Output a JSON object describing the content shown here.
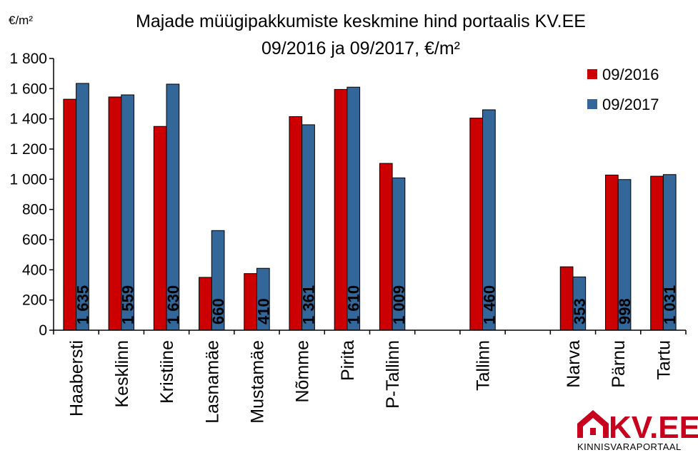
{
  "chart_data": {
    "type": "bar",
    "title_line1": "Majade müügipakkumiste keskmine hind portaalis KV.EE",
    "title_line2": "09/2016 ja 09/2017, €/m²",
    "unit_label": "€/m²",
    "categories": [
      "Haabersti",
      "Kesklinn",
      "Kristiine",
      "Lasnamäe",
      "Mustamäe",
      "Nõmme",
      "Pirita",
      "P-Tallinn",
      "",
      "Tallinn",
      "",
      "Narva",
      "Pärnu",
      "Tartu"
    ],
    "series": [
      {
        "name": "09/2016",
        "color": "#cc0000",
        "values": [
          1530,
          1545,
          1350,
          350,
          375,
          1415,
          1595,
          1105,
          null,
          1405,
          null,
          420,
          1028,
          1020
        ]
      },
      {
        "name": "09/2017",
        "color": "#336699",
        "values": [
          1635,
          1559,
          1630,
          660,
          410,
          1361,
          1610,
          1009,
          null,
          1460,
          null,
          353,
          998,
          1031
        ],
        "data_labels": [
          "1 635",
          "1 559",
          "1 630",
          "660",
          "410",
          "1 361",
          "1 610",
          "1 009",
          "",
          "1 460",
          "",
          "353",
          "998",
          "1 031"
        ]
      }
    ],
    "ylim": [
      0,
      1800
    ],
    "yticks": [
      0,
      200,
      400,
      600,
      800,
      1000,
      1200,
      1400,
      1600,
      1800
    ],
    "ytick_labels": [
      "0",
      "200",
      "400",
      "600",
      "800",
      "1 000",
      "1 200",
      "1 400",
      "1 600",
      "1 800"
    ],
    "legend_position": "top-right",
    "grid": false
  },
  "logo": {
    "text": "KV.EE",
    "subtitle": "KINNISVARAPORTAAL",
    "color": "#c8001e"
  }
}
